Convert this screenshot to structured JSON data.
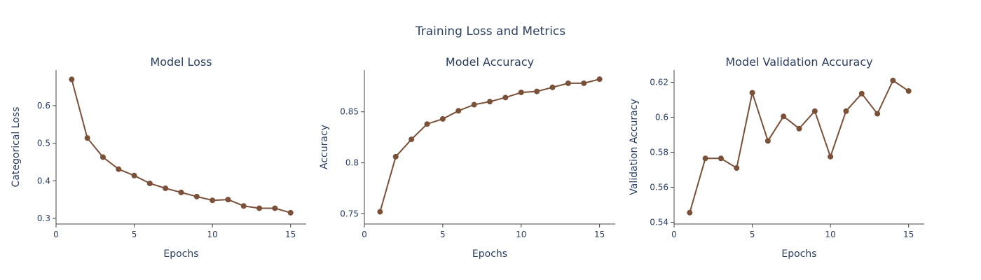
{
  "figure": {
    "title": "Training Loss and Metrics"
  },
  "chart_data": [
    {
      "type": "line",
      "title": "Model Loss",
      "xlabel": "Epochs",
      "ylabel": "Categorical Loss",
      "x": [
        1,
        2,
        3,
        4,
        5,
        6,
        7,
        8,
        9,
        10,
        11,
        12,
        13,
        14,
        15
      ],
      "series": [
        {
          "values": [
            0.67,
            0.514,
            0.463,
            0.431,
            0.414,
            0.393,
            0.38,
            0.369,
            0.358,
            0.348,
            0.35,
            0.333,
            0.327,
            0.327,
            0.315
          ]
        }
      ],
      "xlim": [
        0,
        16
      ],
      "ylim": [
        0.285,
        0.695
      ],
      "xticks": [
        0,
        5,
        10,
        15
      ],
      "xtick_labels": [
        "0",
        "5",
        "10",
        "15"
      ],
      "yticks": [
        0.3,
        0.4,
        0.5,
        0.6
      ],
      "ytick_labels": [
        "0.3",
        "0.4",
        "0.5",
        "0.6"
      ],
      "grid": false,
      "color": "#7a5038"
    },
    {
      "type": "line",
      "title": "Model Accuracy",
      "xlabel": "Epochs",
      "ylabel": "Accuracy",
      "x": [
        1,
        2,
        3,
        4,
        5,
        6,
        7,
        8,
        9,
        10,
        11,
        12,
        13,
        14,
        15
      ],
      "series": [
        {
          "values": [
            0.752,
            0.806,
            0.823,
            0.838,
            0.843,
            0.851,
            0.857,
            0.86,
            0.864,
            0.869,
            0.87,
            0.874,
            0.878,
            0.878,
            0.882
          ]
        }
      ],
      "xlim": [
        0,
        16
      ],
      "ylim": [
        0.74,
        0.891
      ],
      "xticks": [
        0,
        5,
        10,
        15
      ],
      "xtick_labels": [
        "0",
        "5",
        "10",
        "15"
      ],
      "yticks": [
        0.75,
        0.8,
        0.85
      ],
      "ytick_labels": [
        "0.75",
        "0.8",
        "0.85"
      ],
      "grid": false,
      "color": "#7a5038"
    },
    {
      "type": "line",
      "title": "Model Validation Accuracy",
      "xlabel": "Epochs",
      "ylabel": "Validation Accuracy",
      "x": [
        1,
        2,
        3,
        4,
        5,
        6,
        7,
        8,
        9,
        10,
        11,
        12,
        13,
        14,
        15
      ],
      "series": [
        {
          "values": [
            0.5455,
            0.5765,
            0.5765,
            0.571,
            0.614,
            0.5865,
            0.6005,
            0.5935,
            0.6035,
            0.5775,
            0.6035,
            0.6135,
            0.602,
            0.621,
            0.615
          ]
        }
      ],
      "xlim": [
        0,
        16
      ],
      "ylim": [
        0.539,
        0.627
      ],
      "xticks": [
        0,
        5,
        10,
        15
      ],
      "xtick_labels": [
        "0",
        "5",
        "10",
        "15"
      ],
      "yticks": [
        0.54,
        0.56,
        0.58,
        0.6,
        0.62
      ],
      "ytick_labels": [
        "0.54",
        "0.56",
        "0.58",
        "0.6",
        "0.62"
      ],
      "grid": false,
      "color": "#7a5038"
    }
  ]
}
